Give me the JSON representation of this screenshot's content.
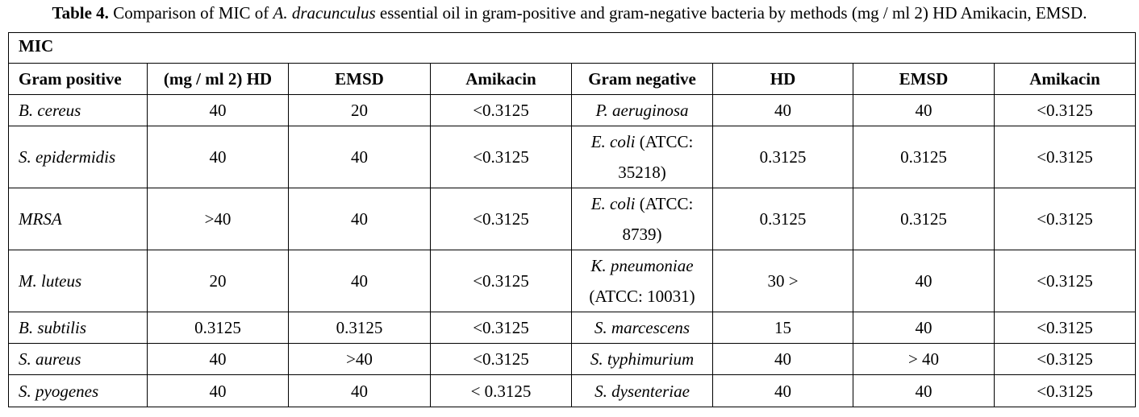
{
  "caption": {
    "label": "Table 4.",
    "text_before": " Comparison of MIC of ",
    "species": "A. dracunculus",
    "text_after": " essential oil in gram-positive and gram-negative bacteria by methods (mg / ml 2) HD Amikacin, EMSD."
  },
  "table": {
    "group_header": "MIC",
    "headers": [
      "Gram positive",
      "(mg / ml 2) HD",
      "EMSD",
      "Amikacin",
      "Gram negative",
      "HD",
      "EMSD",
      "Amikacin"
    ],
    "rows": [
      {
        "gp": "B. cereus",
        "gp_hd": "40",
        "gp_emsd": "20",
        "gp_amk": "<0.3125",
        "gn": "P. aeruginosa",
        "gn_suffix_1": "",
        "gn_line2": "",
        "gn_hd": "40",
        "gn_emsd": "40",
        "gn_amk": "<0.3125"
      },
      {
        "gp": "S. epidermidis",
        "gp_hd": "40",
        "gp_emsd": "40",
        "gp_amk": "<0.3125",
        "gn": "E. coli",
        "gn_suffix_1": " (ATCC:",
        "gn_line2": "35218)",
        "gn_hd": "0.3125",
        "gn_emsd": "0.3125",
        "gn_amk": "<0.3125"
      },
      {
        "gp": "MRSA",
        "gp_hd": ">40",
        "gp_emsd": "40",
        "gp_amk": "<0.3125",
        "gn": "E. coli",
        "gn_suffix_1": " (ATCC:",
        "gn_line2": "8739)",
        "gn_hd": "0.3125",
        "gn_emsd": "0.3125",
        "gn_amk": "<0.3125"
      },
      {
        "gp": "M. luteus",
        "gp_hd": "20",
        "gp_emsd": "40",
        "gp_amk": "<0.3125",
        "gn": "K. pneumoniae",
        "gn_suffix_1": "",
        "gn_line2": "(ATCC: 10031)",
        "gn_hd": "30 >",
        "gn_emsd": "40",
        "gn_amk": "<0.3125"
      },
      {
        "gp": "B. subtilis",
        "gp_hd": "0.3125",
        "gp_emsd": "0.3125",
        "gp_amk": "<0.3125",
        "gn": "S. marcescens",
        "gn_suffix_1": "",
        "gn_line2": "",
        "gn_hd": "15",
        "gn_emsd": "40",
        "gn_amk": "<0.3125"
      },
      {
        "gp": "S. aureus",
        "gp_hd": "40",
        "gp_emsd": ">40",
        "gp_amk": "<0.3125",
        "gn": "S. typhimurium",
        "gn_suffix_1": "",
        "gn_line2": "",
        "gn_hd": "40",
        "gn_emsd": "> 40",
        "gn_amk": "<0.3125"
      },
      {
        "gp": "S. pyogenes",
        "gp_hd": "40",
        "gp_emsd": "40",
        "gp_amk": "< 0.3125",
        "gn": "S. dysenteriae",
        "gn_suffix_1": "",
        "gn_line2": "",
        "gn_hd": "40",
        "gn_emsd": "40",
        "gn_amk": "<0.3125"
      }
    ]
  }
}
